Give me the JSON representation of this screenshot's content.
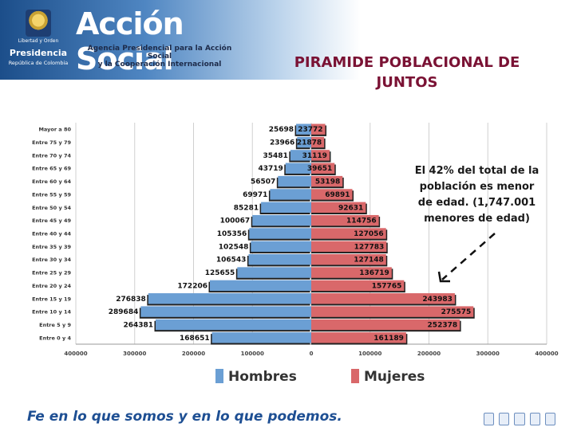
{
  "header": {
    "presidency_seal_caption": "Libertad y Orden",
    "presidency_label": "Presidencia",
    "presidency_sub": "República de Colombia",
    "brand_name": "Acción Social",
    "brand_sub_line1": "Agencia Presidencial para la Acción Social",
    "brand_sub_line2": "y la Cooperación Internacional"
  },
  "slide": {
    "title_line1": "PIRAMIDE POBLACIONAL DE",
    "title_line2": "JUNTOS"
  },
  "callout": {
    "line1": "El 42% del total de la",
    "line2": "población es menor",
    "line3": "de edad. (1,747.001",
    "line4": "menores de edad)"
  },
  "footer": {
    "slogan": "Fe en lo que somos y en lo que podemos."
  },
  "colors": {
    "hombres": "#6b9fd4",
    "mujeres": "#d9686a",
    "title": "#7a1234",
    "slogan": "#1e4f93"
  },
  "chart_data": {
    "type": "bar",
    "orientation": "horizontal-pyramid",
    "categories": [
      "Mayor a 80",
      "Entre 75 y 79",
      "Entre 70 y 74",
      "Entre 65 y 69",
      "Entre 60 y 64",
      "Entre 55 y 59",
      "Entre 50 y 54",
      "Entre 45 y 49",
      "Entre 40 y 44",
      "Entre 35 y 39",
      "Entre 30 y 34",
      "Entre 25 y 29",
      "Entre 20 y 24",
      "Entre 15 y 19",
      "Entre 10 y 14",
      "Entre 5 y 9",
      "Entre 0 y 4"
    ],
    "series": [
      {
        "name": "Hombres",
        "values": [
          25698,
          23966,
          35481,
          43719,
          56507,
          69971,
          85281,
          100067,
          105356,
          102548,
          106543,
          125655,
          172206,
          276838,
          289684,
          264381,
          168651
        ]
      },
      {
        "name": "Mujeres",
        "values": [
          23772,
          21878,
          31119,
          39651,
          53198,
          69891,
          92631,
          114756,
          127056,
          127783,
          127148,
          136719,
          157765,
          243983,
          275575,
          252378,
          161189
        ]
      }
    ],
    "xticks": [
      "400000",
      "300000",
      "200000",
      "100000",
      "0",
      "100000",
      "200000",
      "300000",
      "400000"
    ],
    "xlim": [
      -400000,
      400000
    ],
    "grid": true,
    "legend": "bottom"
  }
}
